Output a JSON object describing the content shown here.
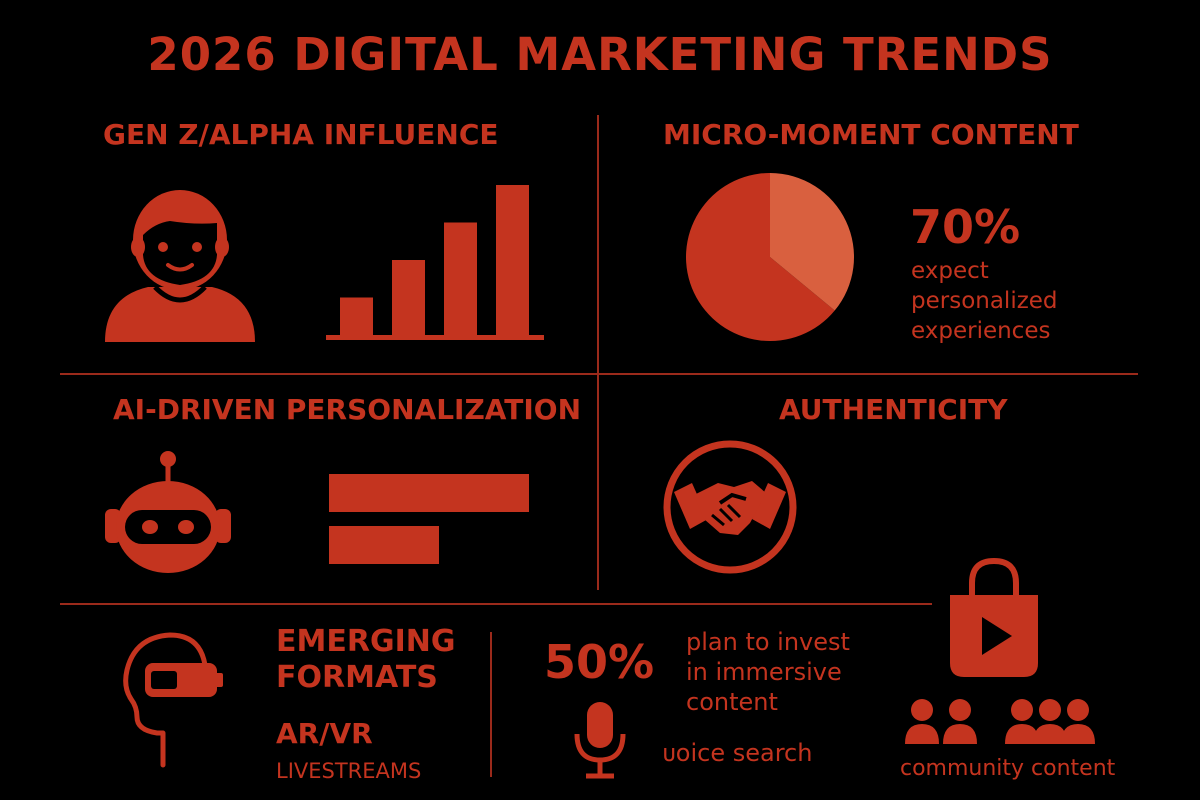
{
  "title": "2026 DIGITAL MARKETING TRENDS",
  "colors": {
    "background": "#000000",
    "accent": "#c4341f",
    "accent_light": "#d9603f",
    "divider": "#9b2a1b"
  },
  "sections": {
    "gen_z": {
      "heading": "GEN Z/ALPHA INFLUENCE",
      "icons": [
        "person-icon",
        "bar-chart-icon"
      ],
      "bar_levels": [
        0.25,
        0.5,
        0.75,
        1.0
      ]
    },
    "micro_moment": {
      "heading": "MICRO-MOMENT CONTENT",
      "icon": "pie-chart-icon",
      "stat_value": "70%",
      "stat_lines": [
        "expect",
        "personalized",
        "experiences"
      ],
      "pie_highlight_fraction": 0.36
    },
    "ai": {
      "heading": "AI-DRIVEN PERSONALIZATION",
      "icons": [
        "robot-icon",
        "horizontal-bars-icon"
      ],
      "bar_levels": [
        1.0,
        0.55
      ]
    },
    "authenticity": {
      "heading": "AUTHENTICITY",
      "icon": "handshake-icon"
    },
    "emerging": {
      "heading_lines": [
        "EMERGING",
        "FORMATS"
      ],
      "items": [
        "AR/VR",
        "LIVESTREAMS"
      ],
      "icon": "vr-headset-icon"
    },
    "immersive": {
      "stat_value": "50%",
      "stat_lines": [
        "plan to invest",
        "in immersive",
        "content"
      ],
      "voice_label": "ᴜoice search",
      "icon": "microphone-icon"
    },
    "community": {
      "label": "community content",
      "icons": [
        "shopping-bag-play-icon",
        "people-group-icon"
      ]
    }
  }
}
